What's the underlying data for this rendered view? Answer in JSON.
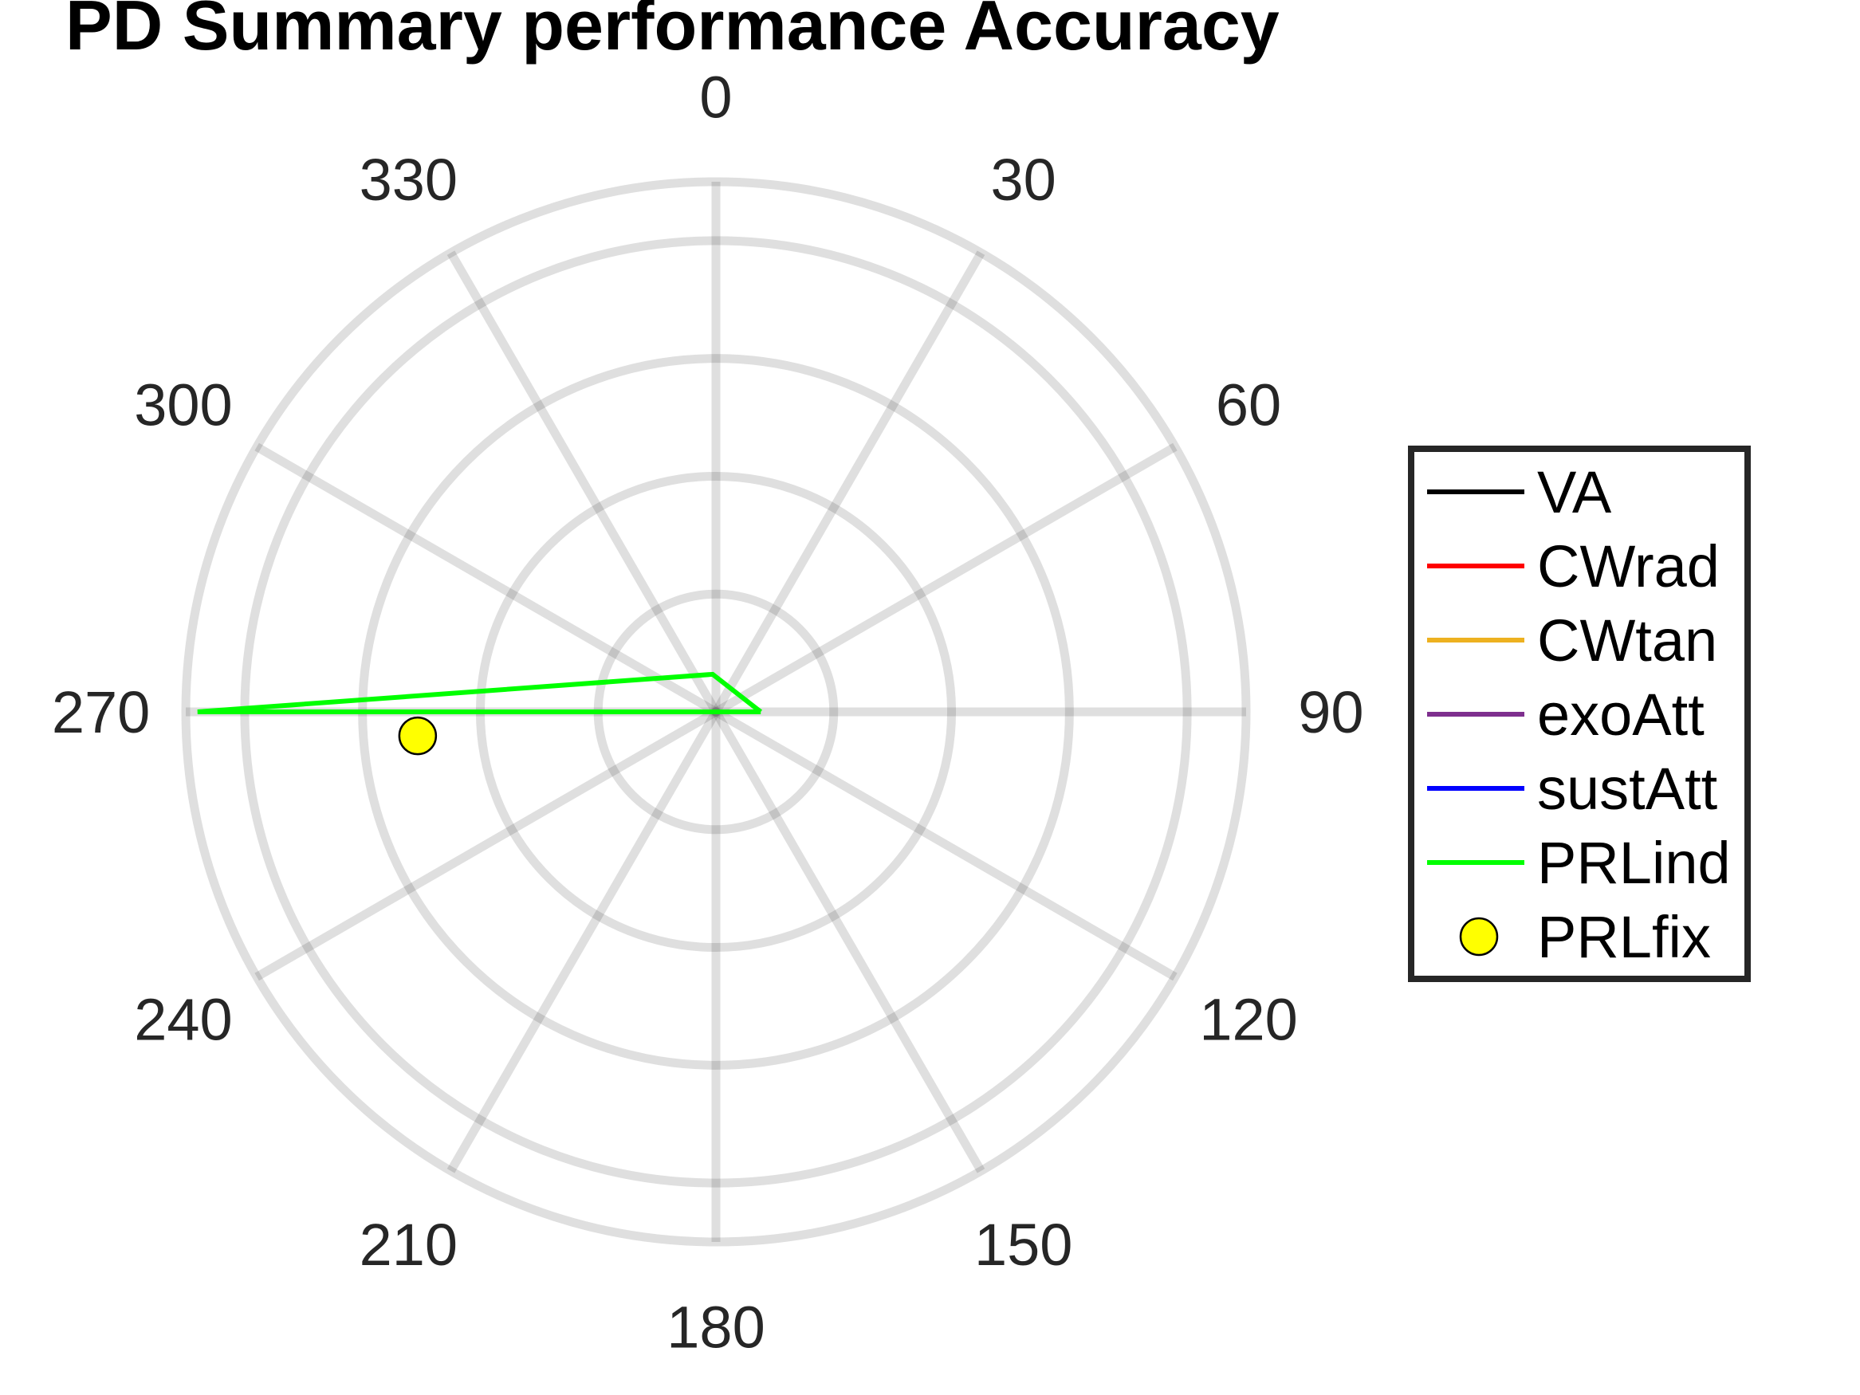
{
  "chart_data": {
    "type": "polar",
    "title": "PD Summary performance Accuracy",
    "theta_direction": "clockwise",
    "theta_zero_location": "top",
    "theta_ticks": [
      "0",
      "30",
      "60",
      "90",
      "120",
      "150",
      "180",
      "210",
      "240",
      "270",
      "300",
      "330"
    ],
    "theta_tick_values": [
      0,
      30,
      60,
      90,
      120,
      150,
      180,
      210,
      240,
      270,
      300,
      330
    ],
    "r_rings": [
      0.5,
      1,
      1.5,
      2,
      2.25
    ],
    "rlim": [
      0,
      2.25
    ],
    "grid": true,
    "legend_position": "right",
    "series": [
      {
        "name": "VA",
        "type": "line",
        "color": "#000000",
        "points": []
      },
      {
        "name": "CWrad",
        "type": "line",
        "color": "#ff0000",
        "points": []
      },
      {
        "name": "CWtan",
        "type": "line",
        "color": "#edb120",
        "points": []
      },
      {
        "name": "exoAtt",
        "type": "line",
        "color": "#7e2f8e",
        "points": []
      },
      {
        "name": "sustAtt",
        "type": "line",
        "color": "#0000ff",
        "points": []
      },
      {
        "name": "PRLind",
        "type": "line",
        "color": "#00ff00",
        "points": [
          [
            0,
            0
          ],
          [
            90,
            0.19
          ],
          [
            0,
            0
          ],
          [
            270,
            2.2
          ],
          [
            355,
            0.16
          ],
          [
            90,
            0.19
          ]
        ]
      },
      {
        "name": "PRLfix",
        "type": "marker",
        "color": "#ffff00",
        "edge_color": "#000000",
        "points": [
          [
            265.4,
            1.27
          ]
        ]
      }
    ]
  }
}
